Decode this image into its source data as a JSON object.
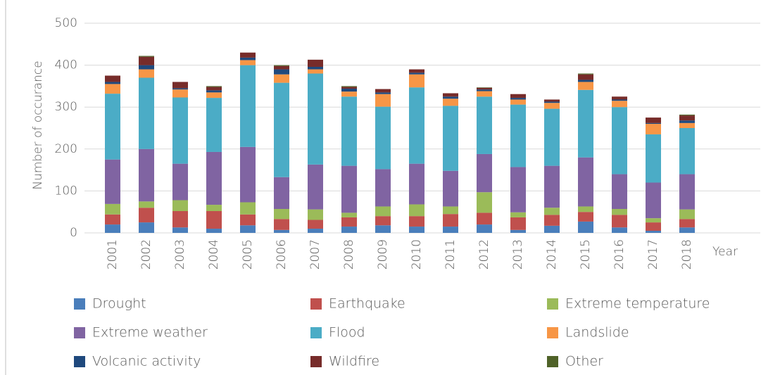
{
  "chart_data": {
    "type": "stacked_bar",
    "y_label": "Number of occurance",
    "x_label": "Year",
    "categories": [
      "2001",
      "2002",
      "2003",
      "2004",
      "2005",
      "2006",
      "2007",
      "2008",
      "2009",
      "2010",
      "2011",
      "2012",
      "2013",
      "2014",
      "2015",
      "2016",
      "2017",
      "2018"
    ],
    "ylim": [
      0,
      500
    ],
    "yticks": [
      0,
      100,
      200,
      300,
      400,
      500
    ],
    "grid": true,
    "series": [
      {
        "name": "Drought",
        "color": "#4a7ebb",
        "values": [
          20,
          25,
          13,
          10,
          18,
          7,
          10,
          15,
          18,
          15,
          15,
          20,
          7,
          17,
          27,
          13,
          5,
          13
        ]
      },
      {
        "name": "Earthquake",
        "color": "#c0504d",
        "values": [
          24,
          35,
          39,
          42,
          26,
          26,
          21,
          22,
          22,
          25,
          30,
          28,
          30,
          26,
          23,
          30,
          20,
          20
        ]
      },
      {
        "name": "Extreme temperature",
        "color": "#9bbb59",
        "values": [
          25,
          15,
          26,
          15,
          29,
          24,
          25,
          11,
          23,
          28,
          18,
          49,
          12,
          17,
          13,
          14,
          10,
          23
        ]
      },
      {
        "name": "Extreme weather",
        "color": "#8064a2",
        "values": [
          106,
          125,
          87,
          126,
          132,
          76,
          107,
          112,
          89,
          97,
          85,
          91,
          108,
          100,
          117,
          83,
          85,
          84
        ]
      },
      {
        "name": "Flood",
        "color": "#4bacc6",
        "values": [
          157,
          170,
          158,
          129,
          195,
          225,
          217,
          165,
          149,
          182,
          155,
          137,
          149,
          136,
          161,
          160,
          115,
          110
        ]
      },
      {
        "name": "Landslide",
        "color": "#f79646",
        "values": [
          23,
          20,
          19,
          13,
          12,
          20,
          10,
          12,
          30,
          31,
          17,
          13,
          12,
          14,
          19,
          15,
          25,
          12
        ]
      },
      {
        "name": "Volcanic activity",
        "color": "#1f497d",
        "values": [
          5,
          10,
          3,
          5,
          6,
          12,
          6,
          7,
          4,
          4,
          5,
          4,
          4,
          3,
          5,
          3,
          2,
          6
        ]
      },
      {
        "name": "Wildfire",
        "color": "#772c2a",
        "values": [
          15,
          20,
          15,
          8,
          12,
          8,
          17,
          4,
          8,
          8,
          8,
          4,
          9,
          5,
          13,
          7,
          13,
          12
        ]
      },
      {
        "name": "Other",
        "color": "#4f6228",
        "values": [
          0,
          2,
          0,
          2,
          0,
          2,
          0,
          2,
          0,
          0,
          0,
          1,
          0,
          0,
          2,
          0,
          0,
          2
        ]
      }
    ]
  }
}
